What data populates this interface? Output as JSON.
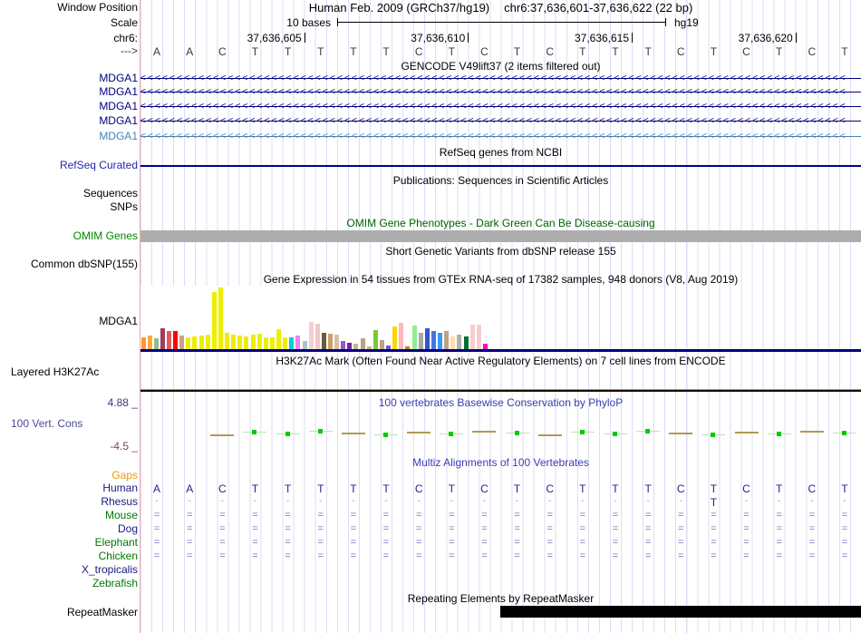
{
  "header": {
    "window_position_label": "Window Position",
    "assembly_text": "Human Feb. 2009 (GRCh37/hg19)",
    "position_text": "chr6:37,636,601-37,636,622 (22 bp)",
    "scale_label": "Scale",
    "scale_value": "10 bases",
    "assembly_tag": "hg19",
    "chrom_label": "chr6:",
    "strand_label": "--->",
    "ruler_ticks": [
      {
        "label": "37,636,605",
        "base": 5
      },
      {
        "label": "37,636,610",
        "base": 10
      },
      {
        "label": "37,636,615",
        "base": 15
      },
      {
        "label": "37,636,620",
        "base": 20
      }
    ],
    "sequence": [
      "A",
      "A",
      "C",
      "T",
      "T",
      "T",
      "T",
      "T",
      "C",
      "T",
      "C",
      "T",
      "C",
      "T",
      "T",
      "T",
      "C",
      "T",
      "C",
      "T",
      "C",
      "T"
    ]
  },
  "tracks": {
    "gencode": {
      "title": "GENCODE V49lift37 (2 items filtered out)",
      "genes": [
        {
          "label": "MDGA1",
          "color": "#000080"
        },
        {
          "label": "MDGA1",
          "color": "#000080"
        },
        {
          "label": "MDGA1",
          "color": "#000080"
        },
        {
          "label": "MDGA1",
          "color": "#000080"
        },
        {
          "label": "MDGA1",
          "color": "#4682B4"
        }
      ]
    },
    "refseq": {
      "title": "RefSeq genes from NCBI",
      "label": "RefSeq Curated",
      "label_color": "#2626A6",
      "line_color": "#000090"
    },
    "publications": {
      "title": "Publications: Sequences in Scientific Articles",
      "labels": [
        "Sequences",
        "SNPs"
      ]
    },
    "omim": {
      "title": "OMIM Gene Phenotypes - Dark Green Can Be Disease-causing",
      "title_color": "#006400",
      "label": "OMIM Genes",
      "label_color": "#008800",
      "bar_color": "#ADADAD"
    },
    "dbsnp": {
      "title": "Short Genetic Variants from dbSNP release 155",
      "label": "Common dbSNP(155)"
    },
    "gtex": {
      "title": "Gene Expression in 54 tissues from GTEx RNA-seq of 17382 samples, 948 donors (V8, Aug 2019)",
      "label": "MDGA1",
      "baseline_color": "#000080"
    },
    "h3k27ac": {
      "title": "H3K27Ac Mark (Often Found Near Active Regulatory Elements) on 7 cell lines from ENCODE",
      "label": "Layered H3K27Ac",
      "line_top_color": "#C8883C",
      "line_bottom_color": "#1A0E00"
    },
    "phylop": {
      "title": "100 vertebrates Basewise Conservation by PhyloP",
      "title_color": "#3C3CB0",
      "label": "100 Vert. Cons",
      "label_color": "#4A4A96",
      "max_label": "4.88 _",
      "max_color": "#3A3A80",
      "min_label": "-4.5 _",
      "min_color": "#8E4444",
      "green_square_color": "#00CC00",
      "green_dash_color": "#BCE4B4",
      "tan_dash_color": "#B09A50",
      "marks": [
        "none",
        "none",
        "tan",
        "green",
        "green",
        "green",
        "tan",
        "green",
        "tan",
        "green",
        "tan",
        "green",
        "tan",
        "green",
        "green",
        "green",
        "tan",
        "green",
        "tan",
        "green",
        "tan",
        "green"
      ]
    },
    "multiz": {
      "title": "Multiz Alignments of 100 Vertebrates",
      "title_color": "#3C3CB0",
      "letter_color": "#23238E",
      "eq_color": "#7878B8",
      "dash_color": "#9898C8",
      "species": [
        {
          "label": "Gaps",
          "color": "#ED9A00",
          "cells": []
        },
        {
          "label": "Human",
          "color": "#1A1A7E",
          "cells": [
            "A",
            "A",
            "C",
            "T",
            "T",
            "T",
            "T",
            "T",
            "C",
            "T",
            "C",
            "T",
            "C",
            "T",
            "T",
            "T",
            "C",
            "T",
            "C",
            "T",
            "C",
            "T"
          ]
        },
        {
          "label": "Rhesus",
          "color": "#1A1A7E",
          "cells": [
            "-",
            "-",
            "-",
            "-",
            "-",
            "-",
            "-",
            "-",
            "-",
            "-",
            "-",
            "-",
            "-",
            "-",
            "-",
            "-",
            "-",
            "T",
            "-",
            "-",
            "-",
            "-"
          ]
        },
        {
          "label": "Mouse",
          "color": "#007800",
          "cells": [
            "=",
            "=",
            "=",
            "=",
            "=",
            "=",
            "=",
            "=",
            "=",
            "=",
            "=",
            "=",
            "=",
            "=",
            "=",
            "=",
            "=",
            "=",
            "=",
            "=",
            "=",
            "="
          ]
        },
        {
          "label": "Dog",
          "color": "#1A1A7E",
          "cells": [
            "=",
            "=",
            "=",
            "=",
            "=",
            "=",
            "=",
            "=",
            "=",
            "=",
            "=",
            "=",
            "=",
            "=",
            "=",
            "=",
            "=",
            "=",
            "=",
            "=",
            "=",
            "="
          ]
        },
        {
          "label": "Elephant",
          "color": "#007800",
          "cells": [
            "=",
            "=",
            "=",
            "=",
            "=",
            "=",
            "=",
            "=",
            "=",
            "=",
            "=",
            "=",
            "=",
            "=",
            "=",
            "=",
            "=",
            "=",
            "=",
            "=",
            "=",
            "="
          ]
        },
        {
          "label": "Chicken",
          "color": "#007800",
          "cells": [
            "=",
            "=",
            "=",
            "=",
            "=",
            "=",
            "=",
            "=",
            "=",
            "=",
            "=",
            "=",
            "=",
            "=",
            "=",
            "=",
            "=",
            "=",
            "=",
            "=",
            "=",
            "="
          ]
        },
        {
          "label": "X_tropicalis",
          "color": "#1A1A7E",
          "cells": []
        },
        {
          "label": "Zebrafish",
          "color": "#007800",
          "cells": []
        }
      ]
    },
    "repeatmasker": {
      "title": "Repeating Elements by RepeatMasker",
      "label": "RepeatMasker",
      "bar_color": "#000000"
    }
  },
  "chart_data": {
    "type": "bar",
    "title": "Gene Expression in 54 tissues from GTEx RNA-seq of 17382 samples, 948 donors (V8, Aug 2019)",
    "gene": "MDGA1",
    "n_bars": 54,
    "ylim": [
      0,
      71
    ],
    "values": [
      13,
      15,
      12,
      23,
      20,
      20,
      15,
      13,
      14,
      15,
      16,
      63,
      68,
      18,
      16,
      15,
      14,
      16,
      17,
      13,
      13,
      22,
      13,
      13,
      15,
      9,
      30,
      28,
      18,
      17,
      16,
      9,
      7,
      6,
      12,
      3,
      21,
      10,
      4,
      25,
      29,
      3,
      26,
      18,
      23,
      20,
      18,
      20,
      14,
      16,
      14,
      27,
      27,
      6
    ],
    "colors": [
      "#FF9933",
      "#FFAA33",
      "#8FBC8F",
      "#A23B5F",
      "#E05C5C",
      "#FF0000",
      "#C9A189",
      "#EEEE00",
      "#EEEE00",
      "#EEEE00",
      "#EEEE00",
      "#EEEE00",
      "#EEEE00",
      "#EEEE00",
      "#EEEE00",
      "#EEEE00",
      "#EEEE00",
      "#EEEE00",
      "#EEEE00",
      "#EEEE00",
      "#EEEE00",
      "#EEEE00",
      "#EEEE00",
      "#00CED1",
      "#EE82EE",
      "#A9C4CE",
      "#F4CFCF",
      "#F0C8C8",
      "#6B5B3A",
      "#C8A165",
      "#D8BFA8",
      "#9955CC",
      "#7722AA",
      "#C8B090",
      "#C0A080",
      "#C8B090",
      "#77CC33",
      "#C0A080",
      "#6A5ACD",
      "#FFD700",
      "#FFB6C1",
      "#B8860B",
      "#90EE90",
      "#A8A8A8",
      "#3355CC",
      "#4477DD",
      "#3399FF",
      "#C0A080",
      "#FFDEAD",
      "#B0B0B0",
      "#007030",
      "#F4CFCF",
      "#F4CFCF",
      "#FF00CC"
    ]
  }
}
